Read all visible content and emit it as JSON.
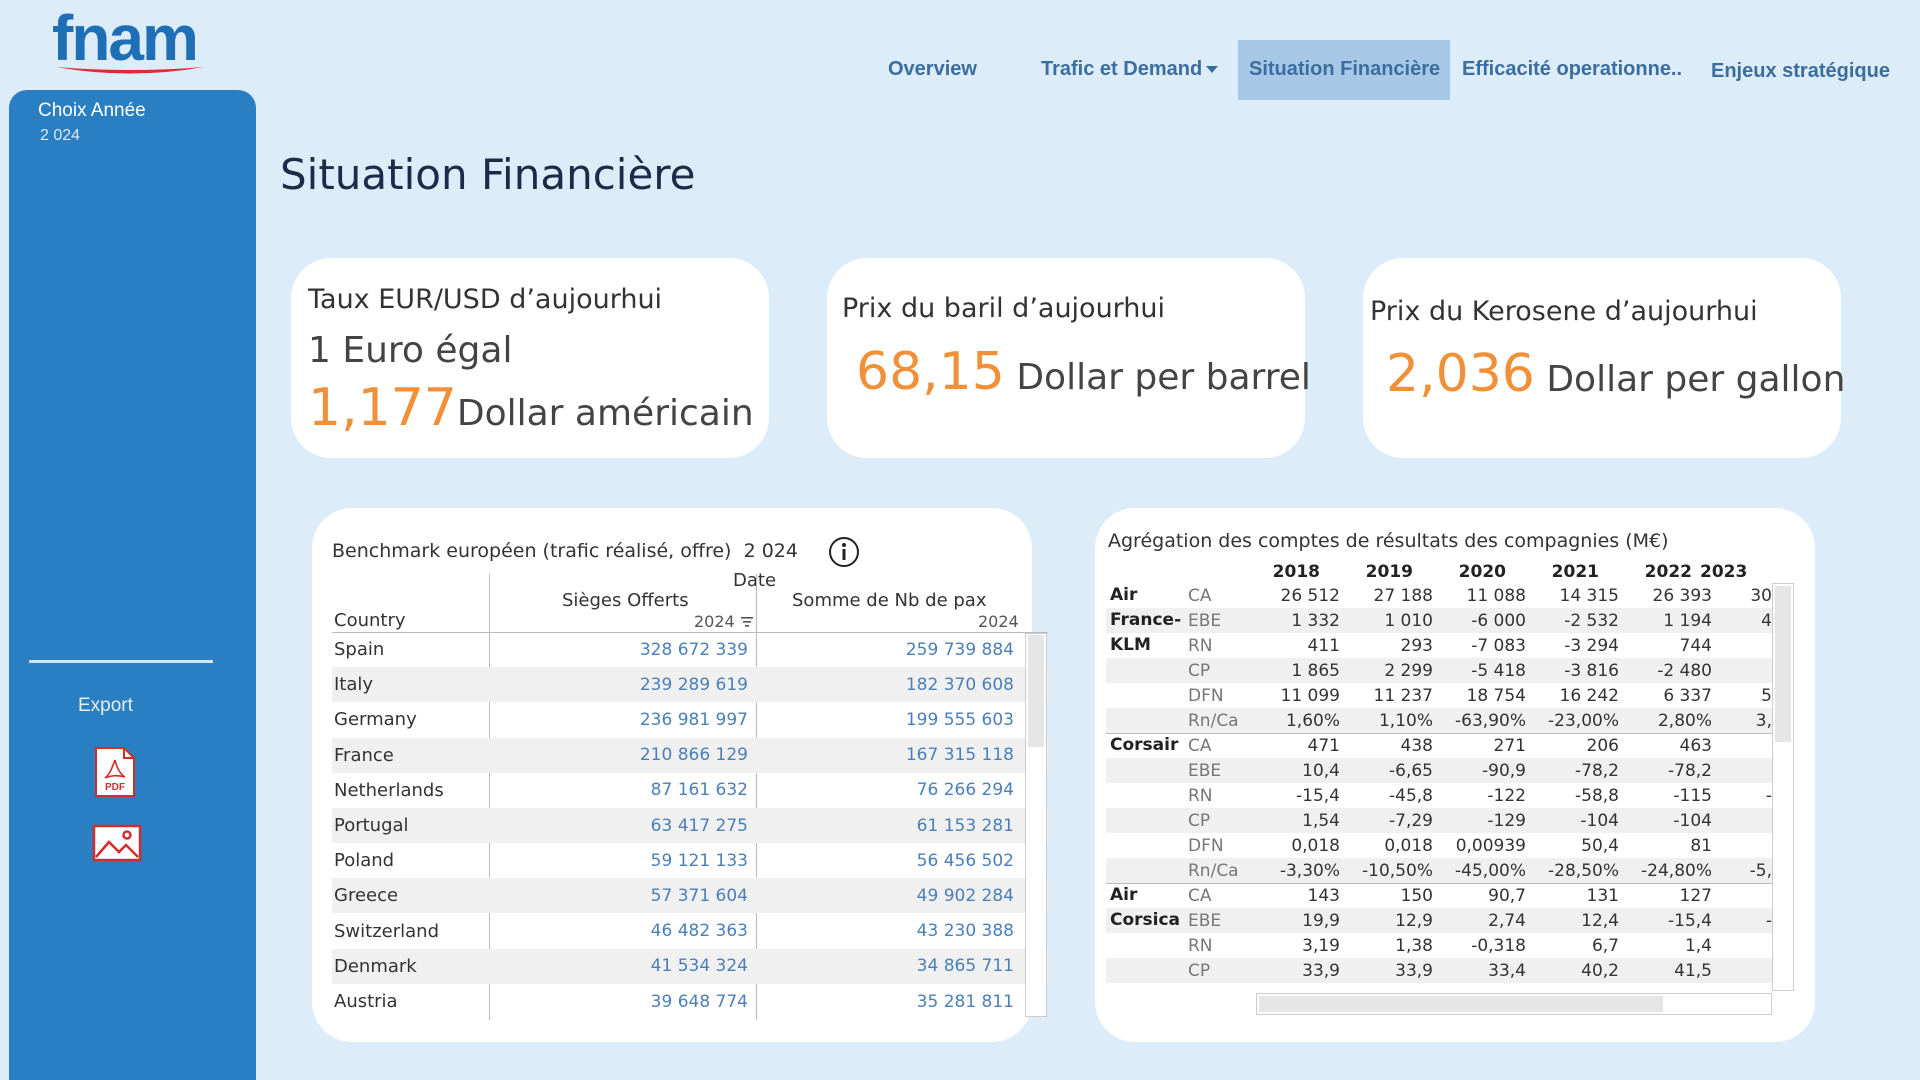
{
  "brand": {
    "logo_text": "fnam",
    "color": "#1f6fb7",
    "accent": "#e4282f"
  },
  "sidebar": {
    "year_label": "Choix Année",
    "year_value": "2 024",
    "export_label": "Export",
    "pdf_icon_label": "PDF"
  },
  "nav": {
    "items": [
      {
        "label": "Overview"
      },
      {
        "label": "Trafic et Demand"
      },
      {
        "label": "Situation Financière"
      },
      {
        "label": "Efficacité operationne.."
      },
      {
        "label": "Enjeux stratégique"
      }
    ],
    "active": "Situation Financière"
  },
  "page_title": "Situation Financière",
  "kpis": {
    "eurusd": {
      "title": "Taux EUR/USD d’aujourhui",
      "line1": "1 Euro égal",
      "value": "1,177",
      "unit": "Dollar américain"
    },
    "baril": {
      "title": "Prix du baril d’aujourhui",
      "value": "68,15",
      "unit": "Dollar per barrel"
    },
    "kerosene": {
      "title": "Prix du Kerosene d’aujourhui",
      "value": "2,036",
      "unit": "Dollar per gallon"
    }
  },
  "benchmark": {
    "title": "Benchmark européen (trafic réalisé, offre)",
    "year": "2 024",
    "date_header": "Date",
    "country_header": "Country",
    "col1_header": "Sièges Offerts",
    "col2_header": "Somme de Nb de pax",
    "col1_year": "2024",
    "col2_year": "2024",
    "rows": [
      {
        "country": "Spain",
        "seats": "328 672 339",
        "pax": "259 739 884"
      },
      {
        "country": "Italy",
        "seats": "239 289 619",
        "pax": "182 370 608"
      },
      {
        "country": "Germany",
        "seats": "236 981 997",
        "pax": "199 555 603"
      },
      {
        "country": "France",
        "seats": "210 866 129",
        "pax": "167 315 118"
      },
      {
        "country": "Netherlands",
        "seats": "87 161 632",
        "pax": "76 266 294"
      },
      {
        "country": "Portugal",
        "seats": "63 417 275",
        "pax": "61 153 281"
      },
      {
        "country": "Poland",
        "seats": "59 121 133",
        "pax": "56 456 502"
      },
      {
        "country": "Greece",
        "seats": "57 371 604",
        "pax": "49 902 284"
      },
      {
        "country": "Switzerland",
        "seats": "46 482 363",
        "pax": "43 230 388"
      },
      {
        "country": "Denmark",
        "seats": "41 534 324",
        "pax": "34 865 711"
      },
      {
        "country": "Austria",
        "seats": "39 648 774",
        "pax": "35 281 811"
      }
    ]
  },
  "aggregation": {
    "title": "Agrégation des comptes de résultats des compagnies (M€)",
    "years": [
      "2018",
      "2019",
      "2020",
      "2021",
      "2022",
      "2023"
    ],
    "companies": [
      {
        "name": "Air\nFrance-\nKLM",
        "rows": [
          {
            "metric": "CA",
            "values": [
              "26 512",
              "27 188",
              "11 088",
              "14 315",
              "26 393",
              "30"
            ]
          },
          {
            "metric": "EBE",
            "values": [
              "1 332",
              "1 010",
              "-6 000",
              "-2 532",
              "1 194",
              "4"
            ]
          },
          {
            "metric": "RN",
            "values": [
              "411",
              "293",
              "-7 083",
              "-3 294",
              "744",
              ""
            ]
          },
          {
            "metric": "CP",
            "values": [
              "1 865",
              "2 299",
              "-5 418",
              "-3 816",
              "-2 480",
              ""
            ]
          },
          {
            "metric": "DFN",
            "values": [
              "11 099",
              "11 237",
              "18 754",
              "16 242",
              "6 337",
              "5"
            ]
          },
          {
            "metric": "Rn/Ca",
            "values": [
              "1,60%",
              "1,10%",
              "-63,90%",
              "-23,00%",
              "2,80%",
              "3,"
            ]
          }
        ]
      },
      {
        "name": "Corsair",
        "rows": [
          {
            "metric": "CA",
            "values": [
              "471",
              "438",
              "271",
              "206",
              "463",
              ""
            ]
          },
          {
            "metric": "EBE",
            "values": [
              "10,4",
              "-6,65",
              "-90,9",
              "-78,2",
              "-78,2",
              ""
            ]
          },
          {
            "metric": "RN",
            "values": [
              "-15,4",
              "-45,8",
              "-122",
              "-58,8",
              "-115",
              "-"
            ]
          },
          {
            "metric": "CP",
            "values": [
              "1,54",
              "-7,29",
              "-129",
              "-104",
              "-104",
              ""
            ]
          },
          {
            "metric": "DFN",
            "values": [
              "0,018",
              "0,018",
              "0,00939",
              "50,4",
              "81",
              ""
            ]
          },
          {
            "metric": "Rn/Ca",
            "values": [
              "-3,30%",
              "-10,50%",
              "-45,00%",
              "-28,50%",
              "-24,80%",
              "-5,"
            ]
          }
        ]
      },
      {
        "name": "Air\nCorsica",
        "rows": [
          {
            "metric": "CA",
            "values": [
              "143",
              "150",
              "90,7",
              "131",
              "127",
              ""
            ]
          },
          {
            "metric": "EBE",
            "values": [
              "19,9",
              "12,9",
              "2,74",
              "12,4",
              "-15,4",
              "-"
            ]
          },
          {
            "metric": "RN",
            "values": [
              "3,19",
              "1,38",
              "-0,318",
              "6,7",
              "1,4",
              ""
            ]
          },
          {
            "metric": "CP",
            "values": [
              "33,9",
              "33,9",
              "33,4",
              "40,2",
              "41,5",
              ""
            ]
          }
        ]
      }
    ]
  }
}
